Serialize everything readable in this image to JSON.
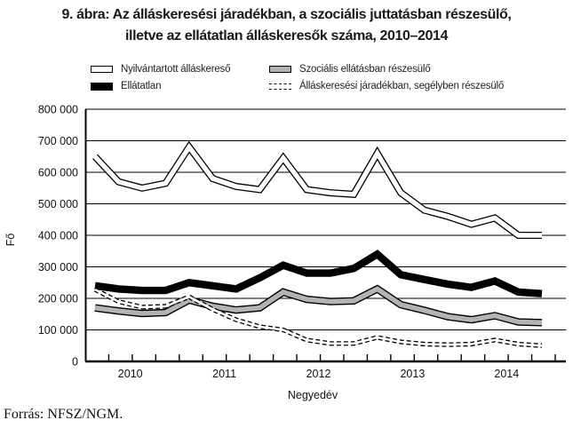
{
  "figure": {
    "title_line1": "9. ábra: Az álláskeresési járadékban, a szociális juttatásban részesülő,",
    "title_line2": "illetve az ellátatlan álláskeresők száma, 2010–2014",
    "source": "Forrás: NFSZ/NGM."
  },
  "legend": [
    {
      "key": "nyilvantartott",
      "label": "Nyilvántartott álláskereső",
      "style": "white-band"
    },
    {
      "key": "szocialis",
      "label": "Szociális ellátásban részesülő",
      "style": "gray-band"
    },
    {
      "key": "ellatatlan",
      "label": "Ellátatlan",
      "style": "black-band"
    },
    {
      "key": "jaradek",
      "label": "Álláskeresési járadékban, segélyben részesülő",
      "style": "dashed-band"
    }
  ],
  "chart_data": {
    "type": "line",
    "x": [
      "2010 Q1",
      "2010 Q2",
      "2010 Q3",
      "2010 Q4",
      "2011 Q1",
      "2011 Q2",
      "2011 Q3",
      "2011 Q4",
      "2012 Q1",
      "2012 Q2",
      "2012 Q3",
      "2012 Q4",
      "2013 Q1",
      "2013 Q2",
      "2013 Q3",
      "2013 Q4",
      "2014 Q1",
      "2014 Q2",
      "2014 Q3",
      "2014 Q4"
    ],
    "year_labels": [
      "2010",
      "2011",
      "2012",
      "2013",
      "2014"
    ],
    "xlabel": "Negyedév",
    "ylabel": "Fő",
    "ylim": [
      0,
      800000
    ],
    "ytick_step": 100000,
    "ytick_labels": [
      "0",
      "100 000",
      "200 000",
      "300 000",
      "400 000",
      "500 000",
      "600 000",
      "700 000",
      "800 000"
    ],
    "grid": true,
    "legend_position": "top",
    "series": [
      {
        "key": "nyilvantartott",
        "name": "Nyilvántartott álláskereső",
        "style": "white-band",
        "values": [
          650000,
          570000,
          550000,
          565000,
          680000,
          580000,
          555000,
          545000,
          645000,
          545000,
          535000,
          530000,
          660000,
          535000,
          480000,
          460000,
          435000,
          455000,
          400000,
          400000
        ]
      },
      {
        "key": "szocialis",
        "name": "Szociális ellátásban részesülő",
        "style": "gray-band",
        "values": [
          170000,
          160000,
          152000,
          155000,
          195000,
          175000,
          163000,
          170000,
          220000,
          197000,
          190000,
          192000,
          230000,
          180000,
          162000,
          142000,
          132000,
          145000,
          125000,
          123000
        ]
      },
      {
        "key": "ellatatlan",
        "name": "Ellátatlan",
        "style": "black-band",
        "values": [
          240000,
          230000,
          225000,
          225000,
          250000,
          240000,
          230000,
          265000,
          305000,
          280000,
          280000,
          295000,
          340000,
          275000,
          260000,
          245000,
          235000,
          255000,
          220000,
          215000
        ]
      },
      {
        "key": "jaradek",
        "name": "Álláskeresési járadékban, segélyben részesülő",
        "style": "dashed-band",
        "values": [
          228000,
          190000,
          172000,
          175000,
          205000,
          165000,
          132000,
          110000,
          100000,
          68000,
          57000,
          57000,
          76000,
          62000,
          55000,
          53000,
          55000,
          68000,
          55000,
          50000
        ]
      }
    ],
    "colors": {
      "band_gray": "#b3b3b3",
      "line_black": "#000000",
      "band_white": "#ffffff",
      "grid": "#000000"
    }
  }
}
